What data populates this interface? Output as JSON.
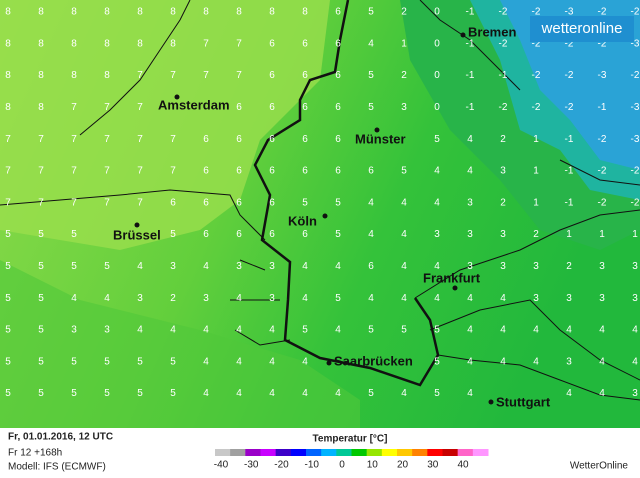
{
  "header": {
    "timestamp": "Fr, 01.01.2016, 12 UTC",
    "forecast": "Fr 12 +168h",
    "model": "Modell: IFS (ECMWF)"
  },
  "legend": {
    "title": "Temperatur [°C]",
    "ticks": [
      -40,
      -30,
      -20,
      -10,
      0,
      10,
      20,
      30,
      40
    ]
  },
  "brand": {
    "logo": "wetteronline",
    "footer": "WetterOnline"
  },
  "cities": [
    "Bremen",
    "Amsterdam",
    "Münster",
    "Köln",
    "Brüssel",
    "Frankfurt",
    "Saarbrücken",
    "Stuttgart"
  ],
  "grid": [
    [
      8,
      8,
      8,
      8,
      8,
      8,
      8,
      8,
      8,
      8,
      6,
      5,
      2,
      0,
      -1,
      -2,
      -2,
      -3,
      -2,
      -2
    ],
    [
      8,
      8,
      8,
      8,
      8,
      8,
      7,
      7,
      6,
      6,
      6,
      4,
      1,
      0,
      -1,
      -2,
      -2,
      -2,
      -2,
      -3
    ],
    [
      8,
      8,
      8,
      8,
      7,
      7,
      7,
      7,
      6,
      6,
      6,
      5,
      2,
      0,
      -1,
      -1,
      -2,
      -2,
      -3,
      -2
    ],
    [
      8,
      8,
      7,
      7,
      7,
      null,
      null,
      6,
      6,
      6,
      6,
      5,
      3,
      0,
      -1,
      -2,
      -2,
      -2,
      -1,
      -3
    ],
    [
      7,
      7,
      7,
      7,
      7,
      7,
      6,
      6,
      6,
      6,
      6,
      null,
      null,
      5,
      4,
      2,
      1,
      -1,
      -2,
      -3
    ],
    [
      7,
      7,
      7,
      7,
      7,
      7,
      6,
      6,
      6,
      6,
      6,
      6,
      5,
      4,
      4,
      3,
      1,
      -1,
      -2,
      -2
    ],
    [
      7,
      7,
      7,
      7,
      7,
      6,
      6,
      6,
      6,
      5,
      5,
      4,
      4,
      4,
      3,
      2,
      1,
      -1,
      -2,
      -2
    ],
    [
      5,
      5,
      5,
      null,
      null,
      5,
      6,
      6,
      6,
      6,
      5,
      4,
      4,
      3,
      3,
      3,
      2,
      1,
      1,
      1
    ],
    [
      5,
      5,
      5,
      5,
      4,
      3,
      4,
      3,
      3,
      4,
      4,
      6,
      4,
      4,
      3,
      3,
      3,
      2,
      3,
      3
    ],
    [
      5,
      5,
      4,
      4,
      3,
      2,
      3,
      4,
      3,
      4,
      5,
      4,
      4,
      4,
      4,
      4,
      3,
      3,
      3,
      3
    ],
    [
      5,
      5,
      3,
      3,
      4,
      4,
      4,
      4,
      4,
      5,
      4,
      5,
      5,
      5,
      4,
      4,
      4,
      4,
      4,
      4
    ],
    [
      5,
      5,
      5,
      5,
      5,
      5,
      4,
      4,
      4,
      4,
      null,
      null,
      null,
      5,
      4,
      4,
      4,
      3,
      4,
      4
    ],
    [
      5,
      5,
      5,
      5,
      5,
      5,
      4,
      4,
      4,
      4,
      4,
      5,
      4,
      5,
      4,
      null,
      null,
      4,
      4,
      3
    ]
  ]
}
